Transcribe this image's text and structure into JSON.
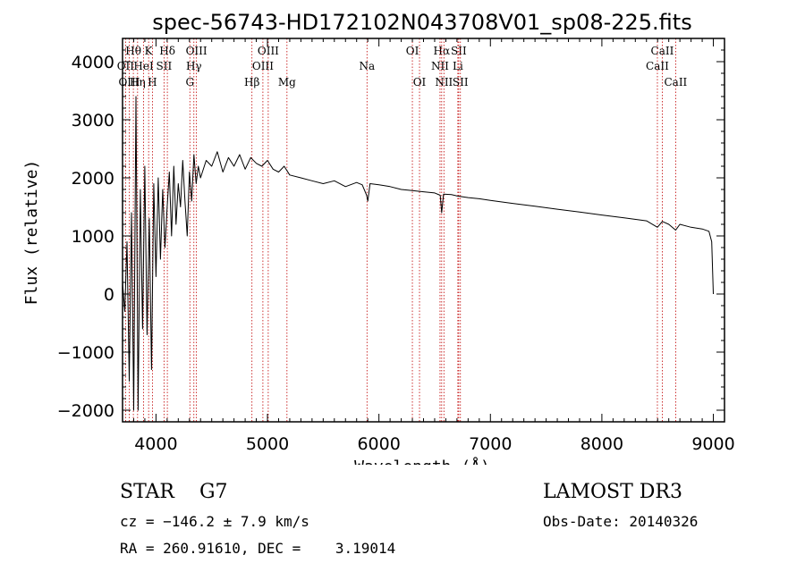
{
  "chart_data": {
    "type": "line",
    "title": "spec-56743-HD172102N043708V01_sp08-225.fits",
    "xlabel": "Wavelength (Å)",
    "ylabel": "Flux (relative)",
    "xlim": [
      3700,
      9100
    ],
    "ylim": [
      -2200,
      4400
    ],
    "x_ticks": [
      4000,
      5000,
      6000,
      7000,
      8000,
      9000
    ],
    "x_tick_labels": [
      "4000",
      "5000",
      "6000",
      "7000",
      "8000",
      "9000"
    ],
    "y_ticks": [
      -2000,
      -1000,
      0,
      1000,
      2000,
      3000,
      4000
    ],
    "y_tick_labels": [
      "−2000",
      "−1000",
      "0",
      "1000",
      "2000",
      "3000",
      "4000"
    ],
    "series": [
      {
        "name": "Flux",
        "x": [
          3700,
          3720,
          3740,
          3760,
          3780,
          3800,
          3820,
          3840,
          3860,
          3880,
          3900,
          3920,
          3940,
          3960,
          3980,
          4000,
          4020,
          4040,
          4060,
          4080,
          4100,
          4120,
          4140,
          4160,
          4180,
          4200,
          4220,
          4240,
          4260,
          4280,
          4300,
          4320,
          4340,
          4360,
          4380,
          4400,
          4450,
          4500,
          4550,
          4600,
          4650,
          4700,
          4750,
          4800,
          4850,
          4900,
          4950,
          5000,
          5050,
          5100,
          5150,
          5200,
          5300,
          5400,
          5500,
          5600,
          5700,
          5800,
          5850,
          5890,
          5900,
          5920,
          6000,
          6100,
          6200,
          6300,
          6400,
          6500,
          6550,
          6563,
          6580,
          6650,
          6700,
          6800,
          6900,
          7000,
          7200,
          7400,
          7600,
          7800,
          8000,
          8200,
          8400,
          8498,
          8542,
          8600,
          8662,
          8700,
          8800,
          8900,
          8960,
          8985,
          9000
        ],
        "values": [
          200,
          -300,
          900,
          -1500,
          1400,
          -2000,
          3400,
          -2000,
          1800,
          -600,
          2200,
          -700,
          1300,
          -1300,
          1900,
          300,
          2000,
          600,
          1800,
          800,
          1500,
          2100,
          1000,
          2200,
          1200,
          1900,
          1500,
          2300,
          1600,
          1000,
          2100,
          1600,
          2400,
          1900,
          2200,
          2000,
          2300,
          2200,
          2450,
          2100,
          2350,
          2200,
          2400,
          2150,
          2350,
          2250,
          2200,
          2300,
          2150,
          2100,
          2200,
          2050,
          2000,
          1950,
          1900,
          1950,
          1850,
          1920,
          1880,
          1700,
          1600,
          1900,
          1880,
          1850,
          1800,
          1780,
          1760,
          1740,
          1700,
          1400,
          1720,
          1710,
          1690,
          1660,
          1640,
          1610,
          1560,
          1510,
          1460,
          1410,
          1360,
          1310,
          1260,
          1150,
          1250,
          1200,
          1100,
          1200,
          1150,
          1120,
          1080,
          900,
          0
        ]
      }
    ],
    "spectral_lines": [
      {
        "name": "Hθ",
        "wavelength": 3797,
        "row": 1
      },
      {
        "name": "OII",
        "wavelength": 3727,
        "row": 2
      },
      {
        "name": "OIII",
        "wavelength": 3760,
        "row": 3
      },
      {
        "name": "Hη",
        "wavelength": 3835,
        "row": 3
      },
      {
        "name": "K",
        "wavelength": 3934,
        "row": 1
      },
      {
        "name": "HeI",
        "wavelength": 3889,
        "row": 2
      },
      {
        "name": "H",
        "wavelength": 3968,
        "row": 3
      },
      {
        "name": "Hδ",
        "wavelength": 4102,
        "row": 1
      },
      {
        "name": "SII",
        "wavelength": 4072,
        "row": 2
      },
      {
        "name": "OIII",
        "wavelength": 4363,
        "row": 1
      },
      {
        "name": "Hγ",
        "wavelength": 4340,
        "row": 2
      },
      {
        "name": "G",
        "wavelength": 4304,
        "row": 3
      },
      {
        "name": "Hβ",
        "wavelength": 4861,
        "row": 3
      },
      {
        "name": "OIII",
        "wavelength": 5007,
        "row": 1
      },
      {
        "name": "OIII",
        "wavelength": 4959,
        "row": 2
      },
      {
        "name": "Mg",
        "wavelength": 5175,
        "row": 3
      },
      {
        "name": "Na",
        "wavelength": 5893,
        "row": 2
      },
      {
        "name": "OI",
        "wavelength": 6300,
        "row": 1
      },
      {
        "name": "OI",
        "wavelength": 6364,
        "row": 3
      },
      {
        "name": "Hα",
        "wavelength": 6563,
        "row": 1
      },
      {
        "name": "NII",
        "wavelength": 6548,
        "row": 2
      },
      {
        "name": "NII",
        "wavelength": 6583,
        "row": 3
      },
      {
        "name": "SII",
        "wavelength": 6716,
        "row": 1
      },
      {
        "name": "Li",
        "wavelength": 6708,
        "row": 2
      },
      {
        "name": "SII",
        "wavelength": 6731,
        "row": 3
      },
      {
        "name": "CaII",
        "wavelength": 8542,
        "row": 1
      },
      {
        "name": "CaII",
        "wavelength": 8498,
        "row": 2
      },
      {
        "name": "CaII",
        "wavelength": 8662,
        "row": 3
      }
    ]
  },
  "info": {
    "classification": "STAR    G7",
    "survey": "LAMOST DR3",
    "redshift": "cz = −146.2 ± 7.9 km/s",
    "obs_date": "Obs-Date: 20140326",
    "coordinates": "RA = 260.91610, DEC =    3.19014"
  },
  "colors": {
    "spectrum": "#000000",
    "line_markers": "#c00000",
    "axes": "#000000",
    "background": "#ffffff"
  }
}
